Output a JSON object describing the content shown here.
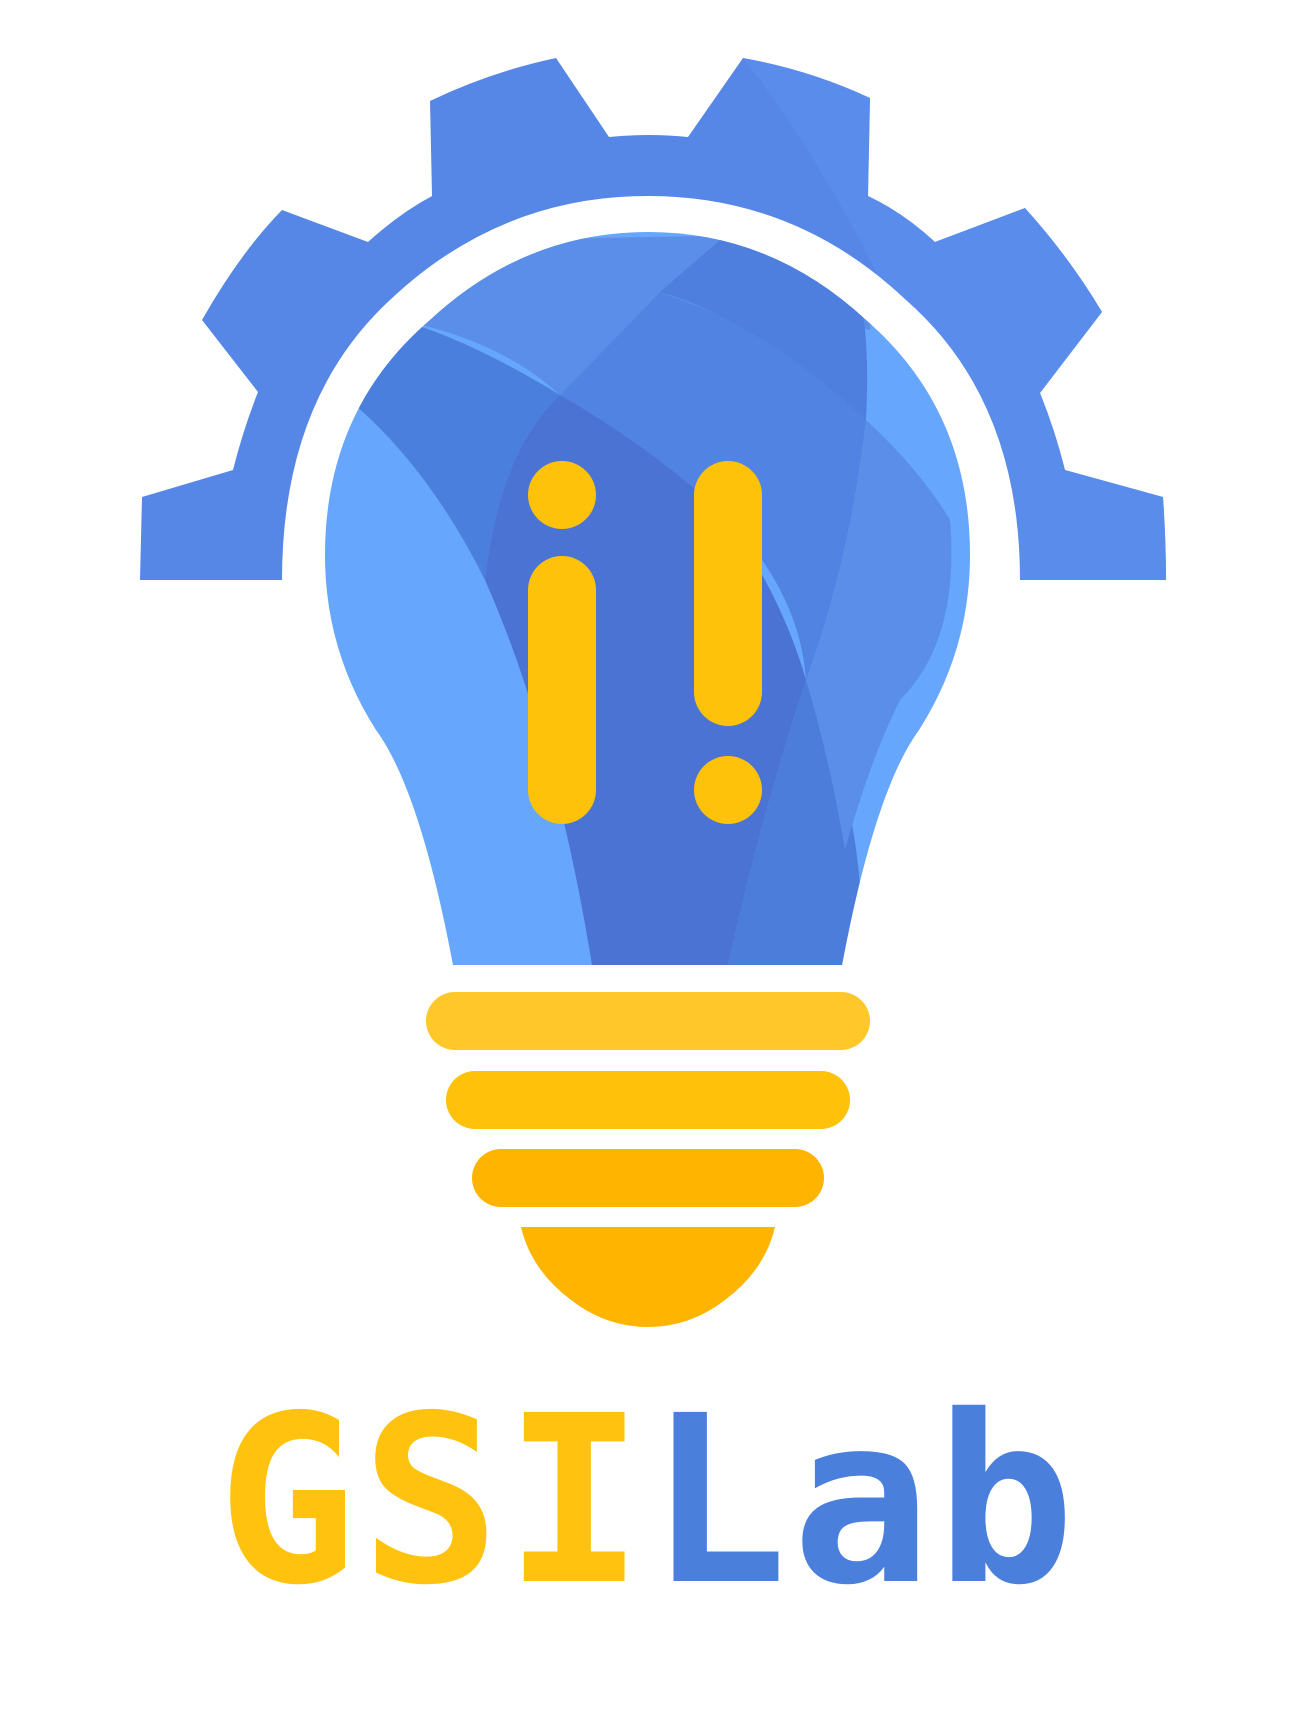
{
  "logo": {
    "name": "GSILab",
    "wordmark_part_1": "GSI",
    "wordmark_part_2": "Lab",
    "glyph": "i!"
  },
  "colors": {
    "gear_blue": "#5787E6",
    "bulb_light": "#66A6FD",
    "bulb_mid": "#5A8EE8",
    "bulb_dark": "#4A76D6",
    "bulb_deep": "#4B73D4",
    "base_yellow_1": "#FFC72A",
    "base_yellow_2": "#FFC10A",
    "base_orange": "#FFB400",
    "wordmark_yellow": "#FFC20E",
    "wordmark_blue": "#4A80DC"
  }
}
